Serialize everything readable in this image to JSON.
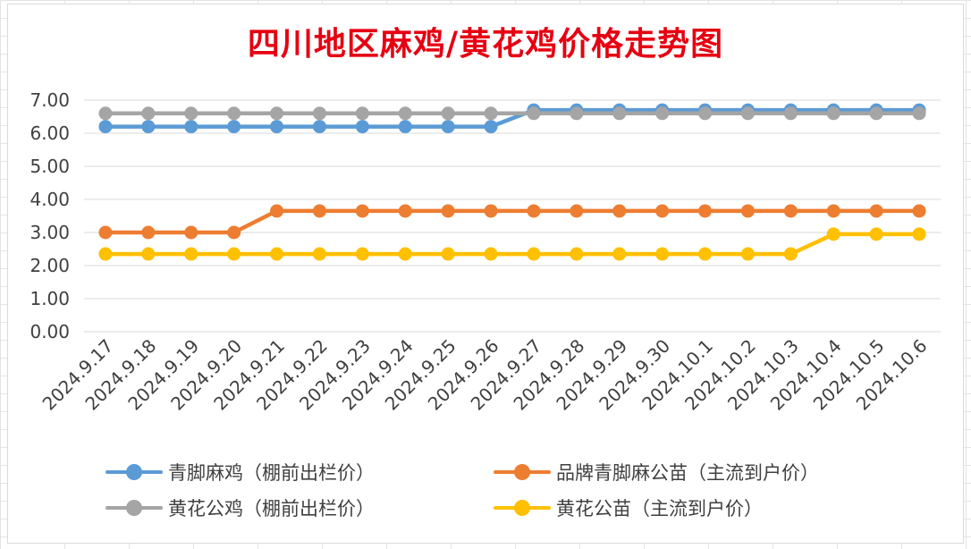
{
  "chart_data": {
    "type": "line",
    "title": "四川地区麻鸡/黄花鸡价格走势图",
    "xlabel": "",
    "ylabel": "",
    "categories": [
      "2024.9.17",
      "2024.9.18",
      "2024.9.19",
      "2024.9.20",
      "2024.9.21",
      "2024.9.22",
      "2024.9.23",
      "2024.9.24",
      "2024.9.25",
      "2024.9.26",
      "2024.9.27",
      "2024.9.28",
      "2024.9.29",
      "2024.9.30",
      "2024.10.1",
      "2024.10.2",
      "2024.10.3",
      "2024.10.4",
      "2024.10.5",
      "2024.10.6"
    ],
    "ylim": [
      0,
      7
    ],
    "yticks": [
      "0.00",
      "1.00",
      "2.00",
      "3.00",
      "4.00",
      "5.00",
      "6.00",
      "7.00"
    ],
    "grid": true,
    "legend_position": "bottom",
    "series": [
      {
        "name": "青脚麻鸡（棚前出栏价）",
        "color": "#5b9bd5",
        "values": [
          6.2,
          6.2,
          6.2,
          6.2,
          6.2,
          6.2,
          6.2,
          6.2,
          6.2,
          6.2,
          6.7,
          6.7,
          6.7,
          6.7,
          6.7,
          6.7,
          6.7,
          6.7,
          6.7,
          6.7
        ]
      },
      {
        "name": "品牌青脚麻公苗（主流到户价）",
        "color": "#ed7d31",
        "values": [
          3.0,
          3.0,
          3.0,
          3.0,
          3.65,
          3.65,
          3.65,
          3.65,
          3.65,
          3.65,
          3.65,
          3.65,
          3.65,
          3.65,
          3.65,
          3.65,
          3.65,
          3.65,
          3.65,
          3.65
        ]
      },
      {
        "name": "黄花公鸡（棚前出栏价）",
        "color": "#a5a5a5",
        "values": [
          6.6,
          6.6,
          6.6,
          6.6,
          6.6,
          6.6,
          6.6,
          6.6,
          6.6,
          6.6,
          6.6,
          6.6,
          6.6,
          6.6,
          6.6,
          6.6,
          6.6,
          6.6,
          6.6,
          6.6
        ]
      },
      {
        "name": "黄花公苗（主流到户价）",
        "color": "#ffc000",
        "values": [
          2.35,
          2.35,
          2.35,
          2.35,
          2.35,
          2.35,
          2.35,
          2.35,
          2.35,
          2.35,
          2.35,
          2.35,
          2.35,
          2.35,
          2.35,
          2.35,
          2.35,
          2.95,
          2.95,
          2.95
        ]
      }
    ]
  }
}
